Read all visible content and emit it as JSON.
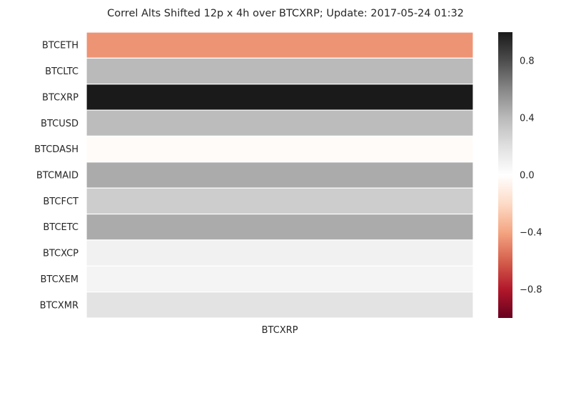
{
  "chart_data": {
    "type": "heatmap",
    "title": "Correl Alts Shifted 12p x 4h over BTCXRP; Update: 2017-05-24 01:32",
    "columns": [
      "BTCXRP"
    ],
    "rows": [
      "BTCETH",
      "BTCLTC",
      "BTCXRP",
      "BTCUSD",
      "BTCDASH",
      "BTCMAID",
      "BTCFCT",
      "BTCETC",
      "BTCXCP",
      "BTCXEM",
      "BTCXMR"
    ],
    "values": [
      -0.45,
      0.4,
      1.0,
      0.39,
      -0.02,
      0.46,
      0.3,
      0.46,
      0.09,
      0.07,
      0.18
    ],
    "vmin": -1.0,
    "vmax": 1.0,
    "colorbar": {
      "ticks": [
        0.8,
        0.4,
        0.0,
        -0.4,
        -0.8
      ],
      "tick_labels": [
        "0.8",
        "0.4",
        "0.0",
        "−0.4",
        "−0.8"
      ],
      "colormap": "RdGy_r",
      "stops": [
        "#67001f",
        "#b2182b",
        "#d6604d",
        "#f4a582",
        "#fddbc7",
        "#ffffff",
        "#e0e0e0",
        "#bababa",
        "#878787",
        "#4d4d4d",
        "#1a1a1a"
      ]
    }
  }
}
